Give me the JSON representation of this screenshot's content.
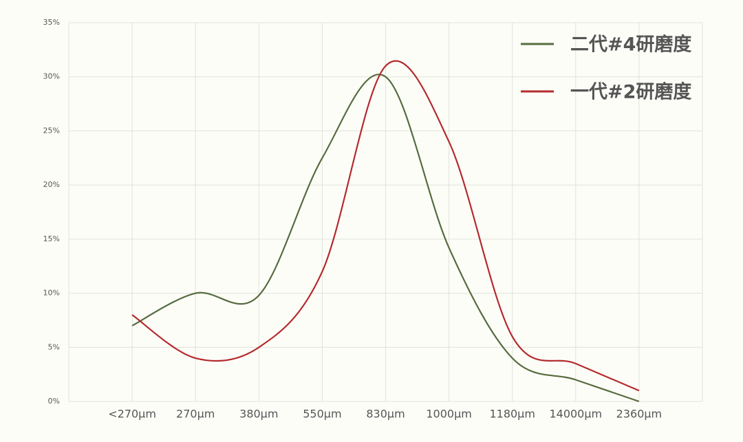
{
  "chart_data": {
    "type": "line",
    "categories": [
      "<270μm",
      "270μm",
      "380μm",
      "550μm",
      "830μm",
      "1000μm",
      "1180μm",
      "14000μm",
      "2360μm"
    ],
    "series": [
      {
        "name": "二代#4研磨度",
        "color": "#566b3e",
        "values": [
          7,
          10,
          9.8,
          22.5,
          30,
          14.2,
          4,
          2,
          0
        ]
      },
      {
        "name": "一代#2研磨度",
        "color": "#b42a2c",
        "values": [
          8,
          4,
          5,
          12,
          31,
          24,
          6,
          3.5,
          1
        ]
      }
    ],
    "ylim": [
      0,
      35
    ],
    "yticks": [
      {
        "value": 0,
        "label": "0%"
      },
      {
        "value": 5,
        "label": "5%"
      },
      {
        "value": 10,
        "label": "10%"
      },
      {
        "value": 15,
        "label": "15%"
      },
      {
        "value": 20,
        "label": "20%"
      },
      {
        "value": 25,
        "label": "25%"
      },
      {
        "value": 30,
        "label": "30%"
      },
      {
        "value": 35,
        "label": "35%"
      }
    ],
    "grid": true,
    "legend": "top-right"
  }
}
